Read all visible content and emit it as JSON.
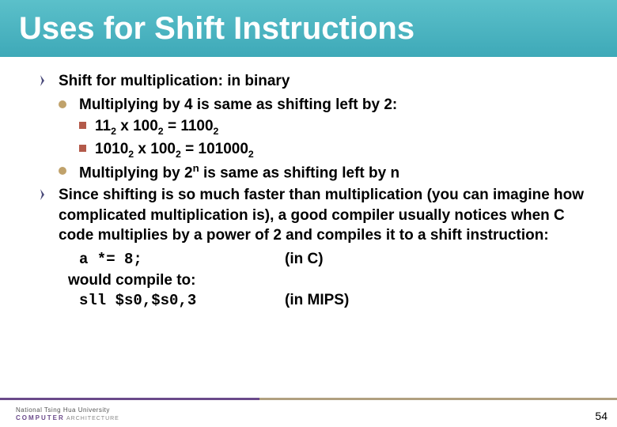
{
  "title": "Uses for Shift Instructions",
  "bullets": {
    "b1": "Shift for multiplication: in binary",
    "b1_1": "Multiplying by 4 is same as shifting left by 2:",
    "b1_1_1_a": "11",
    "b1_1_1_b": " x 100",
    "b1_1_1_c": " = 1100",
    "b1_1_2_a": "1010",
    "b1_1_2_b": " x 100",
    "b1_1_2_c": " = 101000",
    "b1_2_a": "Multiplying by 2",
    "b1_2_b": " is same as shifting left by n",
    "b2": "Since shifting is so much faster than multiplication (you can imagine how complicated multiplication is), a good compiler usually notices when C code multiplies by a power of 2 and compiles it to a shift instruction:"
  },
  "code": {
    "line1_left": "a *= 8;",
    "line1_right": "(in C)",
    "line2": "would compile to:",
    "line3_left": "sll   $s0,$s0,3",
    "line3_right": "(in MIPS)"
  },
  "sub2": "2",
  "supn": "n",
  "footer": {
    "university": "National Tsing Hua University",
    "dept_c": "COMPUTER",
    "dept_a": "ARCHITECTURE"
  },
  "page_number": "54"
}
